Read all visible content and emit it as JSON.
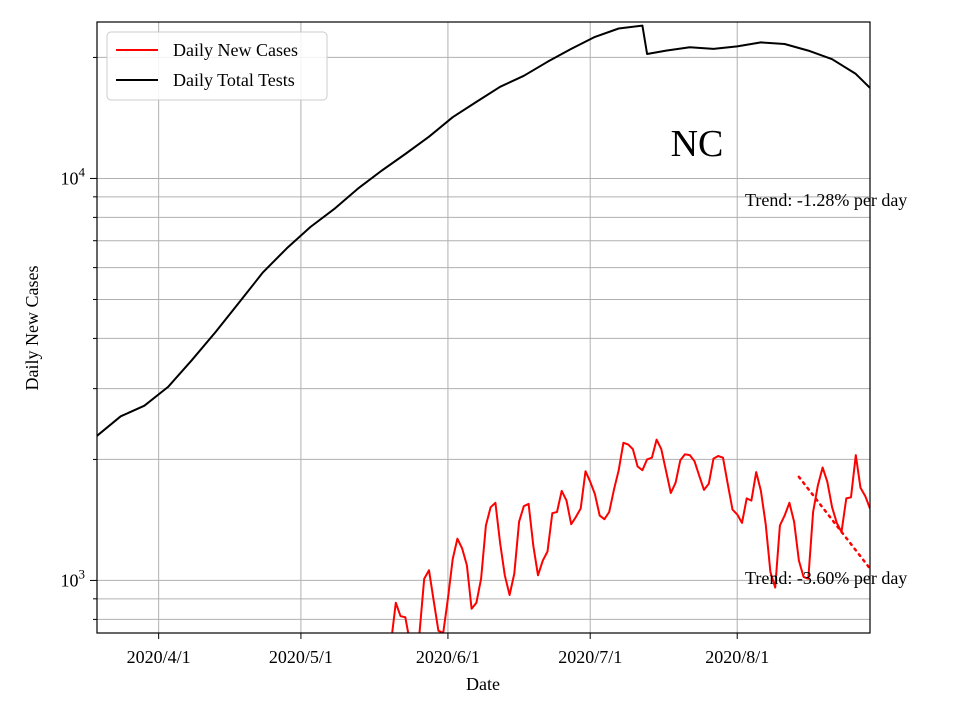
{
  "chart_data": {
    "type": "line",
    "title": "NC",
    "xlabel": "Date",
    "ylabel": "Daily New Cases",
    "yscale": "log",
    "ylim": [
      740,
      24500
    ],
    "xlim": [
      "2020-03-19",
      "2020-08-29"
    ],
    "grid": true,
    "legend_position": "top-left",
    "x_ticks": [
      "2020/4/1",
      "2020/5/1",
      "2020/6/1",
      "2020/7/1",
      "2020/8/1"
    ],
    "x_tick_dates": [
      "2020-04-01",
      "2020-05-01",
      "2020-06-01",
      "2020-07-01",
      "2020-08-01"
    ],
    "y_ticks": [
      {
        "base": "10",
        "exp": "3",
        "value": 1000
      },
      {
        "base": "10",
        "exp": "4",
        "value": 10000
      }
    ],
    "series": [
      {
        "name": "Daily New Cases",
        "color": "#ff0000",
        "x": [
          "2020-05-20",
          "2020-05-21",
          "2020-05-22",
          "2020-05-23",
          "2020-05-24",
          "2020-05-25",
          "2020-05-26",
          "2020-05-27",
          "2020-05-28",
          "2020-05-29",
          "2020-05-30",
          "2020-05-31",
          "2020-06-01",
          "2020-06-02",
          "2020-06-03",
          "2020-06-04",
          "2020-06-05",
          "2020-06-06",
          "2020-06-07",
          "2020-06-08",
          "2020-06-09",
          "2020-06-10",
          "2020-06-11",
          "2020-06-12",
          "2020-06-13",
          "2020-06-14",
          "2020-06-15",
          "2020-06-16",
          "2020-06-17",
          "2020-06-18",
          "2020-06-19",
          "2020-06-20",
          "2020-06-21",
          "2020-06-22",
          "2020-06-23",
          "2020-06-24",
          "2020-06-25",
          "2020-06-26",
          "2020-06-27",
          "2020-06-28",
          "2020-06-29",
          "2020-06-30",
          "2020-07-01",
          "2020-07-02",
          "2020-07-03",
          "2020-07-04",
          "2020-07-05",
          "2020-07-06",
          "2020-07-07",
          "2020-07-08",
          "2020-07-09",
          "2020-07-10",
          "2020-07-11",
          "2020-07-12",
          "2020-07-13",
          "2020-07-14",
          "2020-07-15",
          "2020-07-16",
          "2020-07-17",
          "2020-07-18",
          "2020-07-19",
          "2020-07-20",
          "2020-07-21",
          "2020-07-22",
          "2020-07-23",
          "2020-07-24",
          "2020-07-25",
          "2020-07-26",
          "2020-07-27",
          "2020-07-28",
          "2020-07-29",
          "2020-07-30",
          "2020-07-31",
          "2020-08-01",
          "2020-08-02",
          "2020-08-03",
          "2020-08-04",
          "2020-08-05",
          "2020-08-06",
          "2020-08-07",
          "2020-08-08",
          "2020-08-09",
          "2020-08-10",
          "2020-08-11",
          "2020-08-12",
          "2020-08-13",
          "2020-08-14",
          "2020-08-15",
          "2020-08-16",
          "2020-08-17",
          "2020-08-18",
          "2020-08-19",
          "2020-08-20",
          "2020-08-21",
          "2020-08-22",
          "2020-08-23",
          "2020-08-24",
          "2020-08-25",
          "2020-08-26",
          "2020-08-27",
          "2020-08-28",
          "2020-08-29"
        ],
        "values": [
          700,
          880,
          815,
          810,
          700,
          700,
          740,
          1010,
          1060,
          890,
          750,
          740,
          900,
          1130,
          1270,
          1200,
          1090,
          850,
          880,
          1010,
          1370,
          1520,
          1560,
          1240,
          1030,
          920,
          1040,
          1400,
          1530,
          1550,
          1220,
          1030,
          1120,
          1180,
          1470,
          1480,
          1670,
          1580,
          1380,
          1440,
          1510,
          1870,
          1760,
          1640,
          1450,
          1420,
          1480,
          1680,
          1880,
          2200,
          2180,
          2120,
          1920,
          1880,
          2000,
          2020,
          2240,
          2120,
          1870,
          1650,
          1750,
          1990,
          2060,
          2050,
          1980,
          1820,
          1680,
          1740,
          2010,
          2040,
          2020,
          1740,
          1500,
          1460,
          1390,
          1600,
          1580,
          1860,
          1670,
          1380,
          1050,
          960,
          1370,
          1450,
          1560,
          1400,
          1120,
          1020,
          1010,
          1480,
          1720,
          1910,
          1760,
          1520,
          1390,
          1320,
          1600,
          1610,
          2050,
          1700,
          1620,
          1510
        ]
      },
      {
        "name": "Daily Total Tests",
        "color": "#000000",
        "x": [
          "2020-03-19",
          "2020-03-24",
          "2020-03-29",
          "2020-04-03",
          "2020-04-08",
          "2020-04-13",
          "2020-04-18",
          "2020-04-23",
          "2020-04-28",
          "2020-05-03",
          "2020-05-08",
          "2020-05-13",
          "2020-05-18",
          "2020-05-23",
          "2020-05-28",
          "2020-06-02",
          "2020-06-07",
          "2020-06-12",
          "2020-06-17",
          "2020-06-22",
          "2020-06-27",
          "2020-07-02",
          "2020-07-07",
          "2020-07-12",
          "2020-07-13",
          "2020-07-17",
          "2020-07-22",
          "2020-07-27",
          "2020-08-01",
          "2020-08-06",
          "2020-08-11",
          "2020-08-16",
          "2020-08-21",
          "2020-08-26",
          "2020-08-29"
        ],
        "values": [
          2290,
          2560,
          2720,
          3030,
          3530,
          4150,
          4920,
          5840,
          6700,
          7570,
          8390,
          9430,
          10450,
          11500,
          12700,
          14200,
          15500,
          16900,
          18000,
          19500,
          21000,
          22500,
          23600,
          24000,
          20400,
          20800,
          21200,
          21000,
          21300,
          21800,
          21600,
          20800,
          19800,
          18200,
          16800
        ]
      }
    ],
    "trends": [
      {
        "label": "Trend: -1.28% per day",
        "series": "Daily Total Tests"
      },
      {
        "label": "Trend: -3.60% per day",
        "series": "Daily New Cases",
        "x": [
          "2020-08-14",
          "2020-08-29"
        ],
        "values": [
          1810,
          1070
        ],
        "style": "dotted"
      }
    ]
  }
}
